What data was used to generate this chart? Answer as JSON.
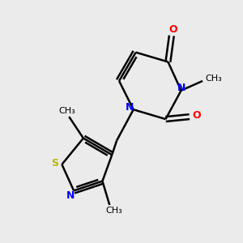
{
  "background_color": "#ebebeb",
  "bond_color": "#000000",
  "N_color": "#0000ff",
  "O_color": "#ff0000",
  "S_color": "#b8b800",
  "figsize": [
    3.0,
    3.0
  ],
  "dpi": 100,
  "xlim": [
    0,
    10
  ],
  "ylim": [
    0,
    10
  ]
}
